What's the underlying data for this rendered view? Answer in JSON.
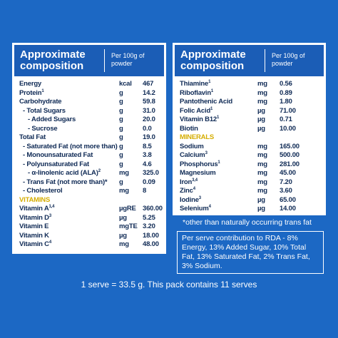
{
  "left": {
    "header": {
      "title": "Approximate composition",
      "per": "Per 100g of powder"
    },
    "rows": [
      {
        "name": "Energy",
        "sup": null,
        "unit": "kcal",
        "value": "467"
      },
      {
        "name": "Protein",
        "sup": "1",
        "unit": "g",
        "value": "14.2"
      },
      {
        "name": "Carbohydrate",
        "sup": null,
        "unit": "g",
        "value": "59.8"
      },
      {
        "name": "- Total Sugars",
        "sup": null,
        "unit": "g",
        "value": "31.0"
      },
      {
        "name": "- Added Sugars",
        "sup": null,
        "unit": "g",
        "value": "20.0"
      },
      {
        "name": "- Sucrose",
        "sup": null,
        "unit": "g",
        "value": "0.0"
      },
      {
        "name": "Total Fat",
        "sup": null,
        "unit": "g",
        "value": "19.0"
      },
      {
        "name": "- Saturated Fat (not more than)",
        "sup": null,
        "unit": "g",
        "value": "8.5"
      },
      {
        "name": "- Monounsaturated Fat",
        "sup": null,
        "unit": "g",
        "value": "3.8"
      },
      {
        "name": "- Polyunsaturated Fat",
        "sup": null,
        "unit": "g",
        "value": "4.6"
      },
      {
        "name": "- α-linolenic acid (ALA)",
        "sup": "2",
        "unit": "mg",
        "value": "325.0"
      },
      {
        "name": "- Trans Fat (not more than)*",
        "sup": null,
        "unit": "g",
        "value": "0.09"
      },
      {
        "name": "- Cholesterol",
        "sup": null,
        "unit": "mg",
        "value": "8"
      },
      {
        "section": "VITAMINS"
      },
      {
        "name": "Vitamin A",
        "sup": "1,4",
        "unit": "µgRE",
        "value": "360.00"
      },
      {
        "name": "Vitamin D",
        "sup": "3",
        "unit": "µg",
        "value": "5.25"
      },
      {
        "name": "Vitamin E",
        "sup": null,
        "unit": "mgTE",
        "value": "3.20"
      },
      {
        "name": "Vitamin K",
        "sup": null,
        "unit": "µg",
        "value": "18.00"
      },
      {
        "name": "Vitamin C",
        "sup": "4",
        "unit": "mg",
        "value": "48.00"
      }
    ]
  },
  "right": {
    "header": {
      "title": "Approximate composition",
      "per": "Per 100g of powder"
    },
    "rows": [
      {
        "name": "Thiamine",
        "sup": "1",
        "unit": "mg",
        "value": "0.56"
      },
      {
        "name": "Riboflavin",
        "sup": "1",
        "unit": "mg",
        "value": "0.89"
      },
      {
        "name": "Pantothenic Acid",
        "sup": null,
        "unit": "mg",
        "value": "1.80"
      },
      {
        "name": "Folic Acid",
        "sup": "1",
        "unit": "µg",
        "value": "71.00"
      },
      {
        "name": "Vitamin B12",
        "sup": "1",
        "unit": "µg",
        "value": "0.71"
      },
      {
        "name": "Biotin",
        "sup": null,
        "unit": "µg",
        "value": "10.00"
      },
      {
        "section": "MINERALS"
      },
      {
        "name": "Sodium",
        "sup": null,
        "unit": "mg",
        "value": "165.00"
      },
      {
        "name": "Calcium",
        "sup": "3",
        "unit": "mg",
        "value": "500.00"
      },
      {
        "name": "Phosphorus",
        "sup": "1",
        "unit": "mg",
        "value": "281.00"
      },
      {
        "name": "Magnesium",
        "sup": null,
        "unit": "mg",
        "value": "45.00"
      },
      {
        "name": "Iron",
        "sup": "3,4",
        "unit": "mg",
        "value": "7.20"
      },
      {
        "name": "Zinc",
        "sup": "4",
        "unit": "mg",
        "value": "3.60"
      },
      {
        "name": "Iodine",
        "sup": "3",
        "unit": "µg",
        "value": "65.00"
      },
      {
        "name": "Selenium",
        "sup": "4",
        "unit": "µg",
        "value": "14.00"
      }
    ]
  },
  "footnote": "*other than naturally occurring trans fat",
  "rda": "Per serve contribution to RDA - 8% Energy, 13% Added Sugar, 10% Total Fat, 13% Saturated Fat, 2% Trans Fat, 3% Sodium.",
  "serve": "1 serve = 33.5 g. This pack contains 11 serves"
}
